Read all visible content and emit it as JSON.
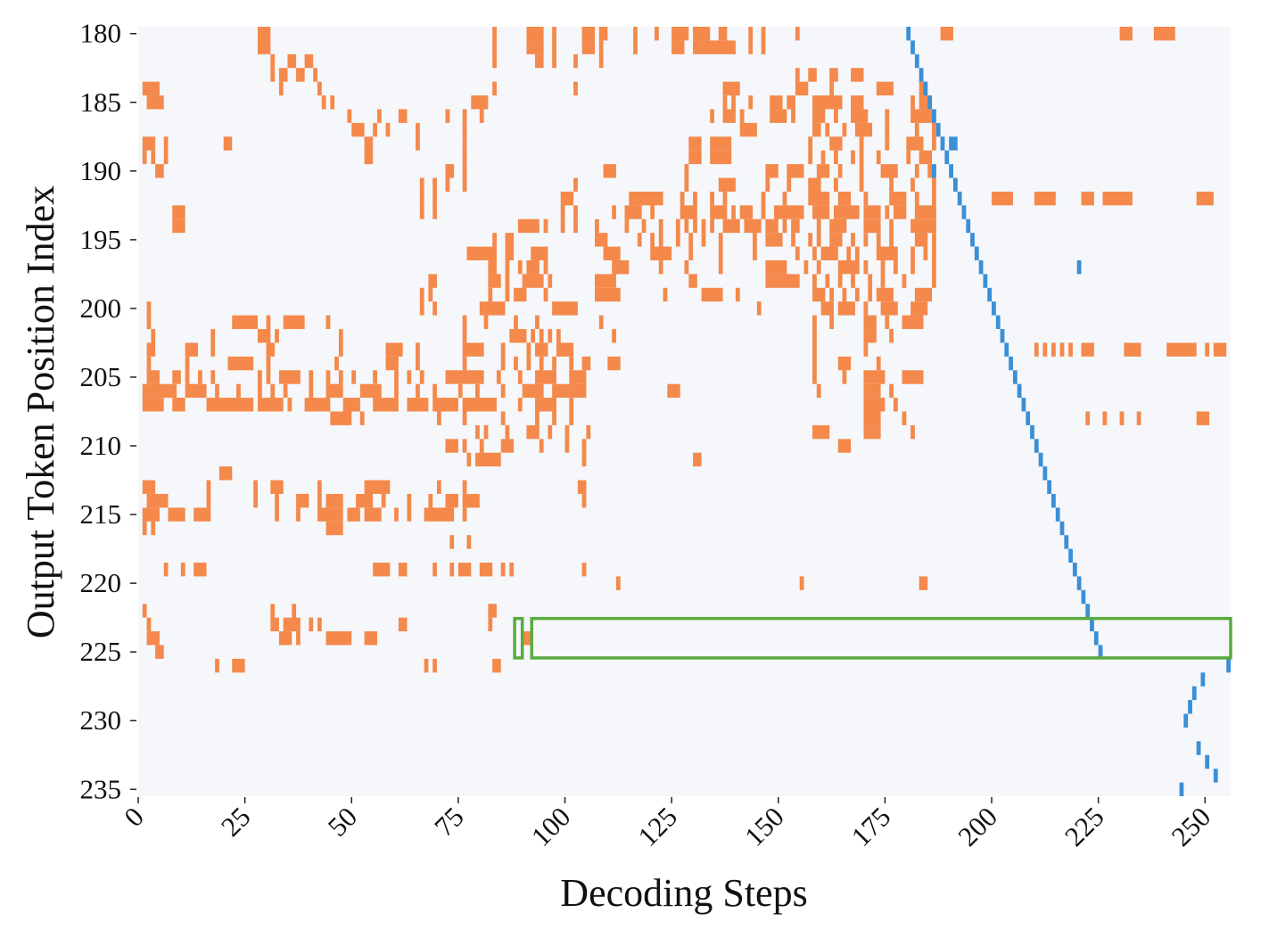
{
  "chart_data": {
    "type": "heatmap",
    "title": "",
    "xlabel": "Decoding Steps",
    "ylabel": "Output Token Position Index",
    "xlim": [
      0,
      256
    ],
    "ylim": [
      180,
      235
    ],
    "x_ticks": [
      "0",
      "25",
      "50",
      "75",
      "100",
      "125",
      "150",
      "175",
      "200",
      "225",
      "250"
    ],
    "x_tick_values": [
      0,
      25,
      50,
      75,
      100,
      125,
      150,
      175,
      200,
      225,
      250
    ],
    "y_ticks": [
      "180",
      "185",
      "190",
      "195",
      "200",
      "205",
      "210",
      "215",
      "220",
      "225",
      "230",
      "235"
    ],
    "y_tick_values": [
      180,
      185,
      190,
      195,
      200,
      205,
      210,
      215,
      220,
      225,
      230,
      235
    ],
    "colors": {
      "background": "#f5f7fa",
      "orange": "#f4894b",
      "blue": "#3a8fd6",
      "highlight": "#5aab3f"
    },
    "orange_cells_by_row": {
      "180": "28-30 83 91-94 97 104-106 108-109 116 121 125-128 130-133 136-137 143 146 154 188-190 230-232 238-242",
      "181": "28-30 83 91-94 97 104-106 108 116 125-127 130-139 143 146",
      "182": "31 35-36 39-40 83 93-94 97 102 108",
      "183": "31 33-34 37-38 41 154 157-158 162-163 167-169",
      "184": "1-4 33 42 83 102 137-140 154-156 162 173-176 183",
      "185": "2-5 43 45 78-81 137 139 143 148-150 152-153 158-164 167-169 181 183-185",
      "186": "49 56 61-62 72 76 80 134 137-139 141 148-151 153 158-160 163 167-170 175 181-185",
      "187": "50-52 55 58 65 76 141-144 158-159 161 165 168-171 175 182 186",
      "188": "1-3 6 20-21 53-54 65 76 129-131 134-138 157 162-164 169 175 180-183 186",
      "189": "1 3 6 53-54 76 129-131 134-138 157 160 163 167 169 173 180 183-185",
      "190": "4-5 72-73 76 109-111 128 147-149 152-155 159-161 164 169 174-177 182 185",
      "191": "66 69 72 76 102 128 136-139 147 152 157-159 163 169 176 181 186",
      "192": "66 69 99-101 115-122 127 130 134 137 146 151 157-161 164-166 170 176-179 182 186 200-204 210-214 221-223 226-232 248-251",
      "193": "8-10 66 69 99 102 111 114-117 120 127-130 134-137 139 141-143 146 149-155 158-161 163-168 170-173 175 177-179 182-186",
      "194": "8-10 89-93 95 99 102 107 114 118 122 126 128 130 132 134 137-140 142-145 147-149 151 153-154 159 162-165 170-173 176 181-186",
      "195": "83 86-87 107-109 117 120 122 126 129 132 136 144 147-150 153 157 159 162-164 167 170 173 176 182-184 186",
      "196": "77-83 86-87 92-95 109-112 120-124 129 136 144 154 158 160-163 166 168 173-177 181 184 186",
      "197": "82-83 86 89 91-93 95 111-114 122 128 136 147-151 156 159 164-168 170 174 177 181 186",
      "198": "68-69 82-84 86 90-94 96 107-111 129-130 147-154 158 161 164 167 171 174 179 186",
      "199": "66 68 82 86 88-90 95 107-112 123 132-136 140 158-160 162 165 168 171 173-176 182-185",
      "200": "2 66 69 80-85 97-102 145 160-162 164-167 170 174-177 181-184",
      "201": "2 22-27 30 34-38 44 76 81 88 93 108 158 162 170-172 175 179-183",
      "202": "3 17 28-30 32 47 76 87-90 92 94 96 98 111 158 170-172 176",
      "203": "2-3 11-13 17 30-31 47 58-61 65 76-80 85 91 93-95 98-101 158 170 210 212 214 216 218 221-223 231-234 241-247 250 252-254",
      "204": "2 11 21-26 30 46 58-60 65 76 85 88 91 94 97 101 104-105 110-112 158 164-166 173",
      "205": "2-4 8-9 11 14 17 28 30 33-37 40 44 47 50 55 60 63 66 72-80 84 89 93-97 101-104 158 165 170-174 179-183",
      "206": "1-8 11-15 18 23 28 31 34 40 44-47 52-56 60 65 69 75 79 85 90-94 97-104 124-126 159 170-173 176",
      "207": "1-5 8-10 16-26 28-33 35 39-44 48-51 55-60 63-67 69-74 76-83 89 93-97 101 170-174 177",
      "208": "45-49 52 70 76 85 93 97 101 170-173 179 222 226 230 234 248-250",
      "209": "79 81 86 91-93 96 100 105 158-161 170-173 181",
      "210": "72-74 76 80 85-87 94 100 104 164-166",
      "211": "77 79-84 104 130-131",
      "212": "19-21",
      "213": "1-3 16 27 31-33 42 53-58 70 76 103-104",
      "214": "2-6 16 27 32 37-39 42 44-47 51-54 57 63 68 72-74 76-79 104",
      "215": "1-4 7-10 13-16 32 37 42-47 49-51 53-56 60 63 67-73 76",
      "216": "1 3 44-47",
      "217": "73 77",
      "219": "6 10 13-15 55-58 61-62 69 73 75-77 80-82 85 87 104",
      "220": "112 155 183-184",
      "222": "1 31 36 82-83",
      "223": "2 31-32 34-37 40 42 61-62 82",
      "224": "2-4 33-35 37 44-49 53-55 90-91",
      "225": "4-5",
      "226": "18 22-24 67 69 83-84"
    },
    "blue_cells_by_row": {
      "180": "180",
      "181": "181",
      "182": "182",
      "183": "183",
      "184": "184",
      "185": "185",
      "186": "186",
      "187": "187",
      "188": "188 190-191",
      "189": "189",
      "190": "186 190",
      "191": "191",
      "192": "192",
      "193": "193",
      "194": "194",
      "195": "195",
      "196": "196",
      "197": "197 220",
      "198": "198",
      "199": "199",
      "200": "200",
      "201": "201",
      "202": "202",
      "203": "203",
      "204": "204",
      "205": "205",
      "206": "206",
      "207": "207",
      "208": "208",
      "209": "209",
      "210": "210",
      "211": "211",
      "212": "212",
      "213": "213",
      "214": "214",
      "215": "215",
      "216": "216",
      "217": "217",
      "218": "218",
      "219": "219",
      "220": "220",
      "221": "221",
      "222": "222",
      "223": "223",
      "224": "224",
      "225": "225",
      "226": "255",
      "227": "249",
      "228": "247",
      "229": "246",
      "230": "245",
      "232": "248",
      "233": "250",
      "234": "252",
      "235": "244"
    },
    "highlight_boxes": [
      {
        "step_start": 88,
        "step_end": 89,
        "row_start": 223,
        "row_end": 225
      },
      {
        "step_start": 92,
        "step_end": 255,
        "row_start": 223,
        "row_end": 225
      }
    ]
  }
}
